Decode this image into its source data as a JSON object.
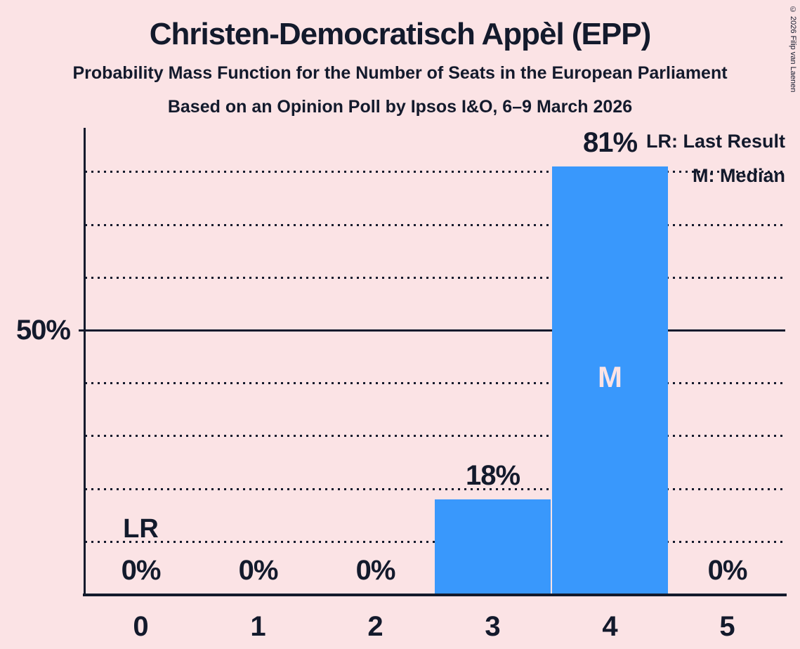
{
  "title": "Christen-Democratisch Appèl (EPP)",
  "subtitle1": "Probability Mass Function for the Number of Seats in the European Parliament",
  "subtitle2": "Based on an Opinion Poll by Ipsos I&O, 6–9 March 2026",
  "copyright": "© 2026 Filip van Laenen",
  "legend": {
    "last_result": "LR: Last Result",
    "median": "M: Median"
  },
  "y_axis": {
    "tick_label": "50%"
  },
  "chart_data": {
    "type": "bar",
    "title": "Christen-Democratisch Appèl (EPP)",
    "subtitle": "Probability Mass Function for the Number of Seats in the European Parliament",
    "source_line": "Based on an Opinion Poll by Ipsos I&O, 6–9 March 2026",
    "categories": [
      "0",
      "1",
      "2",
      "3",
      "4",
      "5"
    ],
    "values": [
      0,
      0,
      0,
      18,
      81,
      0
    ],
    "bar_labels": [
      "0%",
      "0%",
      "0%",
      "18%",
      "81%",
      "0%"
    ],
    "ylim": [
      0,
      88
    ],
    "ytick_pct": 50,
    "gridlines_pct": [
      10,
      20,
      30,
      40,
      50,
      60,
      70,
      80
    ],
    "solid_gridline_pct": 50,
    "grid_style": "dotted",
    "legend_position": "top-right",
    "annotations": [
      {
        "label": "LR",
        "category": "0",
        "meaning": "Last Result"
      },
      {
        "label": "M",
        "category": "4",
        "meaning": "Median"
      }
    ],
    "colors": {
      "bar": "#3998FC",
      "background": "#FBE3E5",
      "text": "#131A2C",
      "median_label_text": "#FBE3E5"
    }
  }
}
